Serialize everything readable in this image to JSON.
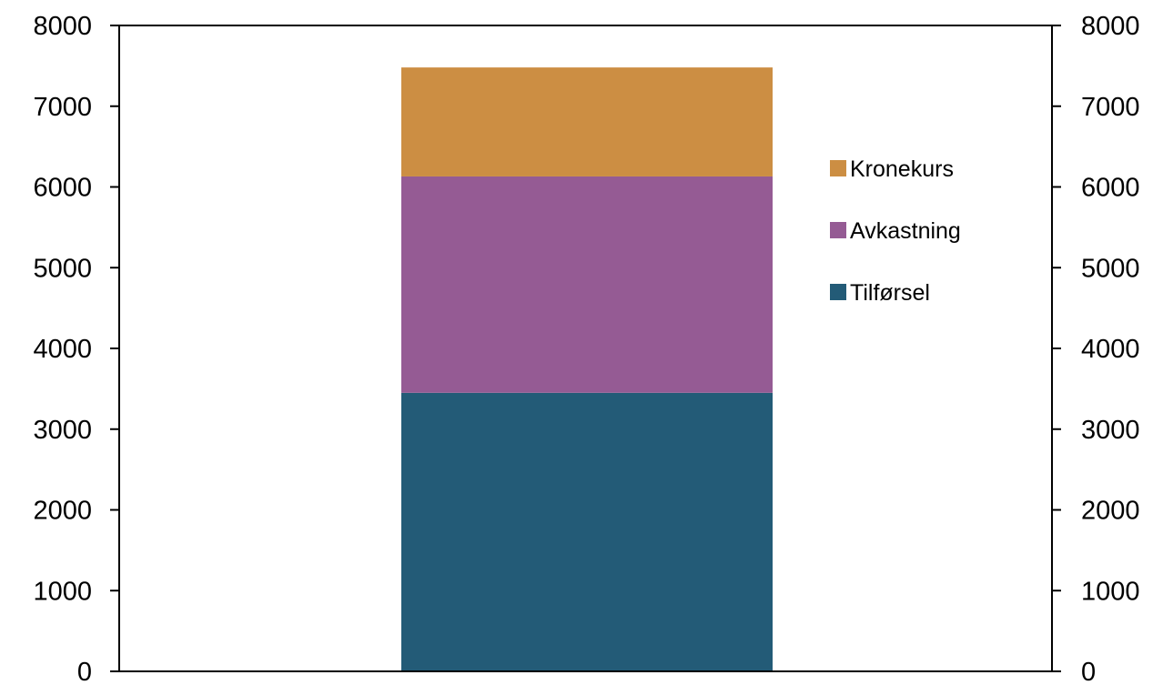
{
  "chart_data": {
    "type": "bar",
    "stacked": true,
    "categories": [
      ""
    ],
    "series": [
      {
        "name": "Tilførsel",
        "values": [
          3450
        ],
        "color": "#235B77"
      },
      {
        "name": "Avkastning",
        "values": [
          2680
        ],
        "color": "#955B94"
      },
      {
        "name": "Kronekurs",
        "values": [
          1350
        ],
        "color": "#CC8E43"
      }
    ],
    "title": "",
    "xlabel": "",
    "ylabel": "",
    "ylim": [
      0,
      8000
    ],
    "y_ticks": [
      0,
      1000,
      2000,
      3000,
      4000,
      5000,
      6000,
      7000,
      8000
    ],
    "y_tick_labels": [
      "0",
      "1000",
      "2000",
      "3000",
      "4000",
      "5000",
      "6000",
      "7000",
      "8000"
    ],
    "secondary_y_axis": true,
    "grid": false,
    "legend_position": "right",
    "legend_order": [
      "Kronekurs",
      "Avkastning",
      "Tilførsel"
    ]
  }
}
